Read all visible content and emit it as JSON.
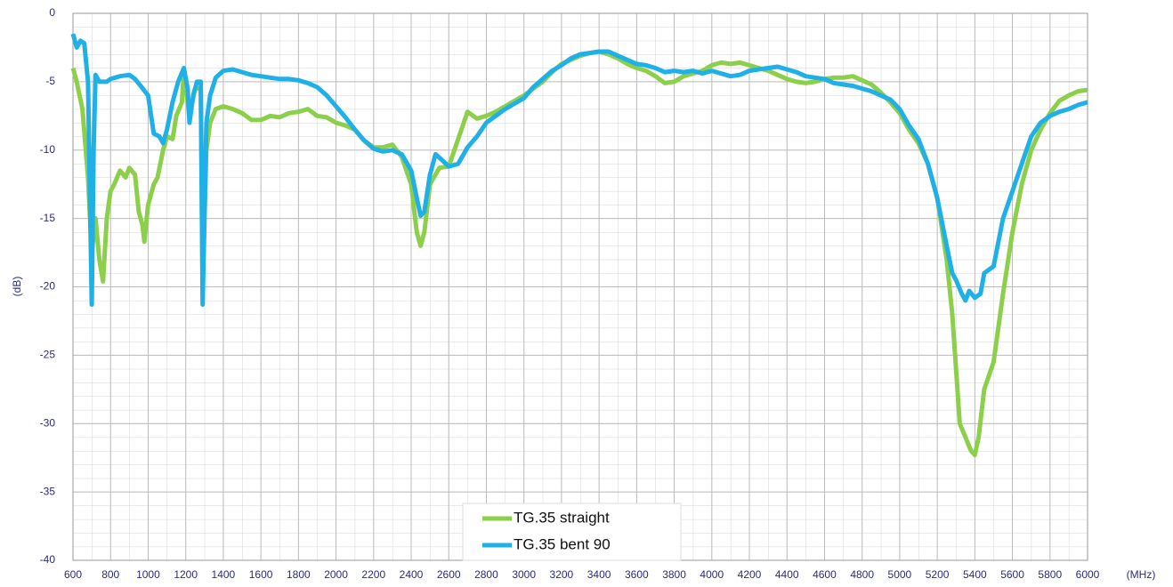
{
  "chart_data": {
    "type": "line",
    "x_label": "(MHz)",
    "y_label": "(dB)",
    "xlim": [
      600,
      6000
    ],
    "ylim": [
      -40,
      0
    ],
    "xticks": [
      600,
      800,
      1000,
      1200,
      1400,
      1600,
      1800,
      2000,
      2200,
      2400,
      2600,
      2800,
      3000,
      3200,
      3400,
      3600,
      3800,
      4000,
      4200,
      4400,
      4600,
      4800,
      5000,
      5200,
      5400,
      5600,
      5800,
      6000
    ],
    "yticks": [
      0,
      -5,
      -10,
      -15,
      -20,
      -25,
      -30,
      -35,
      -40
    ],
    "grid": true,
    "minor_grid": true,
    "legend": "bottom",
    "series": [
      {
        "name": "TG.35 straight",
        "color": "#8ccf4a",
        "x": [
          600,
          620,
          650,
          680,
          700,
          720,
          740,
          760,
          780,
          800,
          820,
          850,
          880,
          900,
          930,
          950,
          970,
          980,
          1000,
          1030,
          1050,
          1080,
          1100,
          1130,
          1150,
          1180,
          1190,
          1220,
          1250,
          1280,
          1290,
          1310,
          1330,
          1360,
          1400,
          1450,
          1500,
          1550,
          1600,
          1650,
          1700,
          1750,
          1800,
          1850,
          1900,
          1950,
          2000,
          2050,
          2100,
          2150,
          2200,
          2250,
          2300,
          2350,
          2400,
          2430,
          2450,
          2470,
          2500,
          2550,
          2600,
          2650,
          2700,
          2750,
          2800,
          2850,
          2900,
          2950,
          3000,
          3050,
          3100,
          3150,
          3200,
          3250,
          3300,
          3350,
          3400,
          3450,
          3500,
          3550,
          3600,
          3650,
          3700,
          3750,
          3800,
          3850,
          3900,
          3950,
          4000,
          4050,
          4100,
          4150,
          4200,
          4250,
          4300,
          4350,
          4400,
          4450,
          4500,
          4550,
          4600,
          4650,
          4700,
          4750,
          4800,
          4850,
          4900,
          4950,
          5000,
          5050,
          5100,
          5150,
          5200,
          5250,
          5280,
          5300,
          5320,
          5350,
          5380,
          5400,
          5420,
          5450,
          5500,
          5550,
          5600,
          5650,
          5700,
          5750,
          5800,
          5850,
          5900,
          5950,
          6000
        ],
        "values": [
          -4,
          -5,
          -7,
          -12,
          -17.5,
          -15,
          -18,
          -19.6,
          -15,
          -13,
          -12.5,
          -11.5,
          -12,
          -11.3,
          -11.8,
          -14.5,
          -15.5,
          -16.7,
          -14,
          -12.5,
          -12,
          -10,
          -9,
          -9.2,
          -7.5,
          -6.5,
          -4.2,
          -7.5,
          -5.5,
          -5.5,
          -20,
          -10,
          -8,
          -7,
          -6.8,
          -7,
          -7.3,
          -7.8,
          -7.8,
          -7.5,
          -7.6,
          -7.3,
          -7.2,
          -7,
          -7.5,
          -7.6,
          -8,
          -8.2,
          -8.5,
          -9.3,
          -9.8,
          -9.8,
          -9.6,
          -10.5,
          -12.5,
          -16,
          -17,
          -16,
          -12.5,
          -11.3,
          -11.2,
          -9.2,
          -7.2,
          -7.7,
          -7.5,
          -7.2,
          -6.8,
          -6.4,
          -6,
          -5.5,
          -5,
          -4.3,
          -3.7,
          -3.4,
          -3.1,
          -2.9,
          -2.8,
          -3,
          -3.3,
          -3.7,
          -4,
          -4.2,
          -4.6,
          -5.1,
          -5,
          -4.6,
          -4.4,
          -4.2,
          -3.8,
          -3.6,
          -3.7,
          -3.6,
          -3.8,
          -4,
          -4.2,
          -4.5,
          -4.8,
          -5,
          -5.1,
          -5,
          -4.8,
          -4.7,
          -4.7,
          -4.6,
          -4.9,
          -5.2,
          -5.8,
          -6.5,
          -7.3,
          -8.5,
          -9.5,
          -11,
          -13.5,
          -18,
          -22,
          -26,
          -30,
          -31,
          -32,
          -32.3,
          -31,
          -27.5,
          -25.5,
          -20.5,
          -16,
          -12.5,
          -10,
          -8.5,
          -7.3,
          -6.4,
          -6,
          -5.7,
          -5.6
        ]
      },
      {
        "name": "TG.35 bent 90",
        "color": "#1eb0e6",
        "x": [
          600,
          620,
          640,
          660,
          680,
          700,
          710,
          720,
          740,
          780,
          800,
          850,
          900,
          930,
          960,
          1000,
          1030,
          1060,
          1080,
          1100,
          1130,
          1160,
          1190,
          1210,
          1220,
          1240,
          1260,
          1280,
          1290,
          1310,
          1330,
          1360,
          1400,
          1450,
          1500,
          1550,
          1600,
          1650,
          1700,
          1750,
          1800,
          1850,
          1900,
          1950,
          2000,
          2050,
          2100,
          2150,
          2200,
          2250,
          2300,
          2350,
          2400,
          2430,
          2450,
          2470,
          2500,
          2530,
          2570,
          2600,
          2650,
          2700,
          2750,
          2800,
          2850,
          2900,
          2950,
          3000,
          3050,
          3100,
          3150,
          3200,
          3250,
          3300,
          3350,
          3400,
          3450,
          3500,
          3550,
          3600,
          3650,
          3700,
          3750,
          3800,
          3850,
          3900,
          3950,
          4000,
          4050,
          4100,
          4150,
          4200,
          4250,
          4300,
          4350,
          4400,
          4450,
          4500,
          4550,
          4600,
          4650,
          4700,
          4750,
          4800,
          4850,
          4900,
          4950,
          5000,
          5050,
          5100,
          5150,
          5200,
          5250,
          5280,
          5300,
          5330,
          5350,
          5370,
          5400,
          5430,
          5450,
          5500,
          5550,
          5600,
          5650,
          5700,
          5750,
          5800,
          5850,
          5900,
          5950,
          6000
        ],
        "values": [
          -1.5,
          -2.5,
          -2,
          -2.2,
          -5,
          -21.3,
          -10,
          -4.5,
          -5,
          -5,
          -4.8,
          -4.6,
          -4.5,
          -4.8,
          -5.3,
          -6,
          -8.8,
          -9,
          -9.5,
          -8.5,
          -6.5,
          -5,
          -4,
          -5.5,
          -8,
          -6,
          -5,
          -5,
          -21.3,
          -8,
          -6,
          -4.7,
          -4.2,
          -4.1,
          -4.3,
          -4.5,
          -4.6,
          -4.7,
          -4.8,
          -4.8,
          -4.9,
          -5.1,
          -5.4,
          -6,
          -6.8,
          -7.6,
          -8.5,
          -9.3,
          -9.9,
          -10.1,
          -10,
          -10.3,
          -11.5,
          -13.5,
          -14.8,
          -14.5,
          -11.8,
          -10.3,
          -10.8,
          -11.2,
          -11,
          -9.8,
          -9,
          -8,
          -7.5,
          -7,
          -6.6,
          -6.2,
          -5.4,
          -4.8,
          -4.2,
          -3.8,
          -3.3,
          -3,
          -2.9,
          -2.8,
          -2.8,
          -3.1,
          -3.4,
          -3.7,
          -3.8,
          -4,
          -4.3,
          -4.2,
          -4.3,
          -4.2,
          -4.4,
          -4.2,
          -4.4,
          -4.6,
          -4.5,
          -4.2,
          -4.1,
          -4,
          -3.9,
          -4.1,
          -4.3,
          -4.6,
          -4.7,
          -4.8,
          -5.1,
          -5.2,
          -5.3,
          -5.5,
          -5.7,
          -6,
          -6.3,
          -7,
          -8.2,
          -9.2,
          -11,
          -13.5,
          -17,
          -19,
          -19.5,
          -20.5,
          -21,
          -20.3,
          -20.8,
          -20.5,
          -19,
          -18.5,
          -15,
          -13,
          -11,
          -9,
          -8,
          -7.5,
          -7.2,
          -7,
          -6.7,
          -6.5
        ]
      }
    ]
  }
}
